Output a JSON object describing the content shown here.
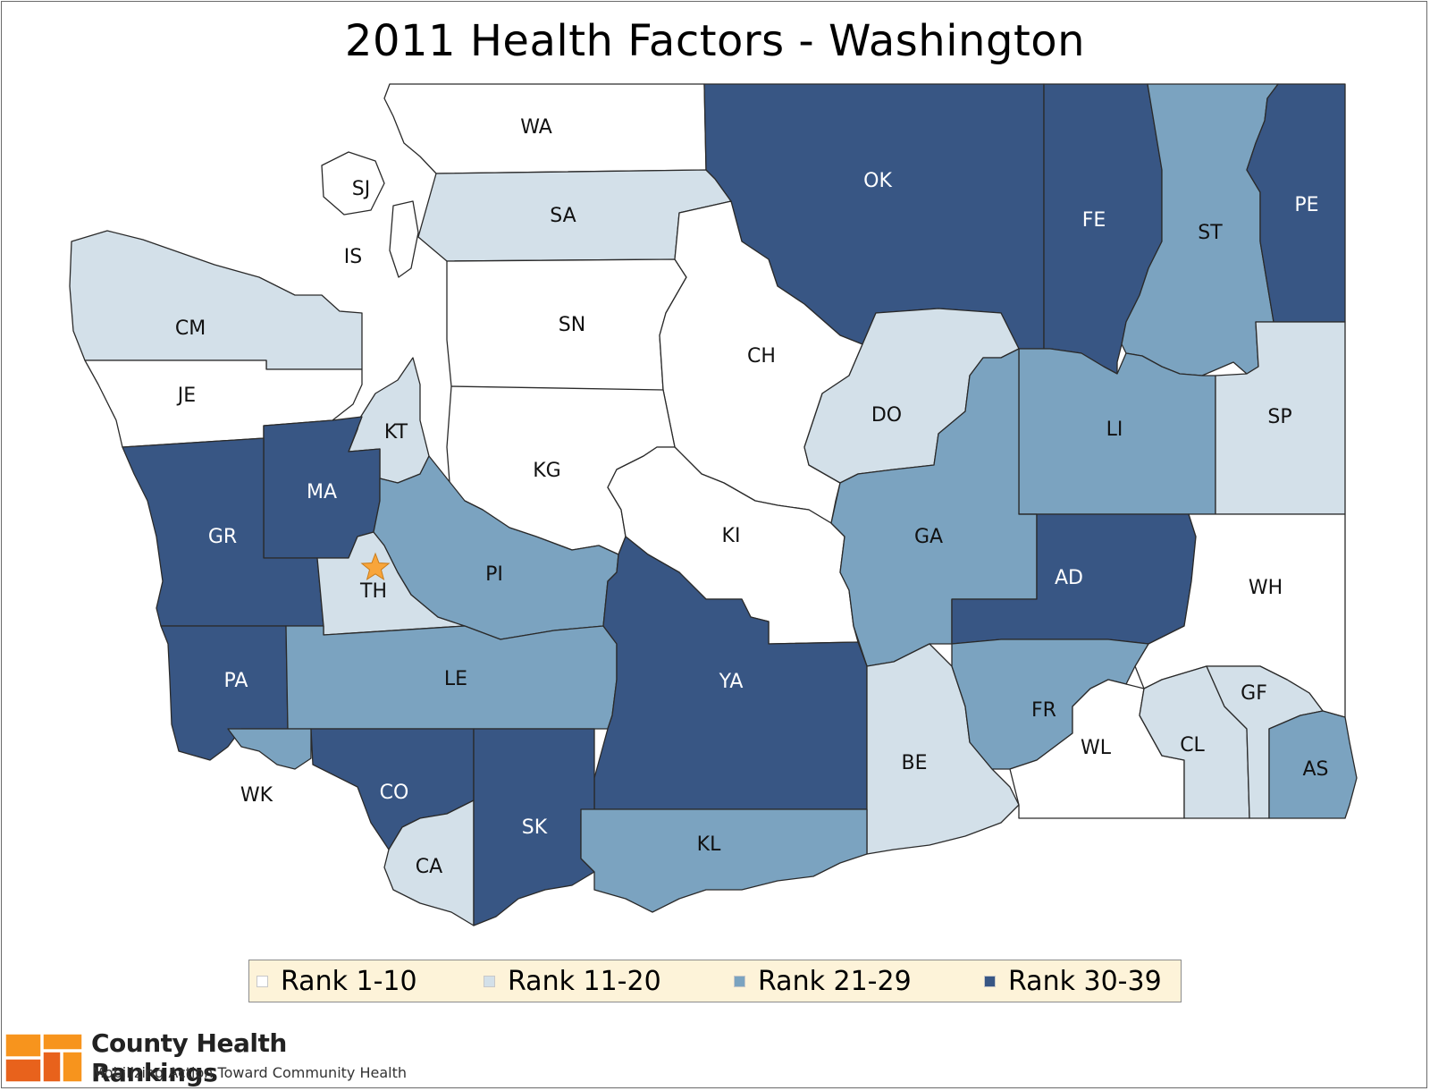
{
  "title": "2011 Health Factors - Washington",
  "colors": {
    "rank_1_10": "#ffffff",
    "rank_11_20": "#d3e0e9",
    "rank_21_29": "#7ba3c0",
    "rank_30_39": "#385684"
  },
  "legend": [
    {
      "label": "Rank 1-10",
      "tier": "rank_1_10"
    },
    {
      "label": "Rank 11-20",
      "tier": "rank_11_20"
    },
    {
      "label": "Rank 21-29",
      "tier": "rank_21_29"
    },
    {
      "label": "Rank 30-39",
      "tier": "rank_30_39"
    }
  ],
  "counties": [
    {
      "abbr": "WA",
      "tier": "rank_1_10"
    },
    {
      "abbr": "SJ",
      "tier": "rank_1_10"
    },
    {
      "abbr": "IS",
      "tier": "rank_1_10"
    },
    {
      "abbr": "SA",
      "tier": "rank_11_20"
    },
    {
      "abbr": "OK",
      "tier": "rank_30_39"
    },
    {
      "abbr": "FE",
      "tier": "rank_30_39"
    },
    {
      "abbr": "ST",
      "tier": "rank_21_29"
    },
    {
      "abbr": "PE",
      "tier": "rank_30_39"
    },
    {
      "abbr": "CM",
      "tier": "rank_11_20"
    },
    {
      "abbr": "JE",
      "tier": "rank_1_10"
    },
    {
      "abbr": "SN",
      "tier": "rank_1_10"
    },
    {
      "abbr": "CH",
      "tier": "rank_1_10"
    },
    {
      "abbr": "DO",
      "tier": "rank_11_20"
    },
    {
      "abbr": "LI",
      "tier": "rank_21_29"
    },
    {
      "abbr": "SP",
      "tier": "rank_11_20"
    },
    {
      "abbr": "KT",
      "tier": "rank_11_20"
    },
    {
      "abbr": "KG",
      "tier": "rank_1_10"
    },
    {
      "abbr": "MA",
      "tier": "rank_30_39"
    },
    {
      "abbr": "GR",
      "tier": "rank_30_39"
    },
    {
      "abbr": "TH",
      "tier": "rank_11_20"
    },
    {
      "abbr": "PI",
      "tier": "rank_21_29"
    },
    {
      "abbr": "KI",
      "tier": "rank_1_10"
    },
    {
      "abbr": "GA",
      "tier": "rank_21_29"
    },
    {
      "abbr": "AD",
      "tier": "rank_30_39"
    },
    {
      "abbr": "WH",
      "tier": "rank_1_10"
    },
    {
      "abbr": "PA",
      "tier": "rank_30_39"
    },
    {
      "abbr": "LE",
      "tier": "rank_21_29"
    },
    {
      "abbr": "YA",
      "tier": "rank_30_39"
    },
    {
      "abbr": "BE",
      "tier": "rank_11_20"
    },
    {
      "abbr": "FR",
      "tier": "rank_21_29"
    },
    {
      "abbr": "WL",
      "tier": "rank_1_10"
    },
    {
      "abbr": "CL",
      "tier": "rank_11_20"
    },
    {
      "abbr": "GF",
      "tier": "rank_11_20"
    },
    {
      "abbr": "AS",
      "tier": "rank_21_29"
    },
    {
      "abbr": "WK",
      "tier": "rank_21_29"
    },
    {
      "abbr": "CO",
      "tier": "rank_30_39"
    },
    {
      "abbr": "CA",
      "tier": "rank_11_20"
    },
    {
      "abbr": "SK",
      "tier": "rank_30_39"
    },
    {
      "abbr": "KL",
      "tier": "rank_21_29"
    }
  ],
  "marker": {
    "county": "TH",
    "icon": "star-icon",
    "color": "#f8a53a"
  },
  "brand": {
    "name": "County Health Rankings",
    "tagline": "Mobilizing Action Toward Community Health",
    "logo_colors": [
      "#f7941d",
      "#e8621c"
    ]
  }
}
